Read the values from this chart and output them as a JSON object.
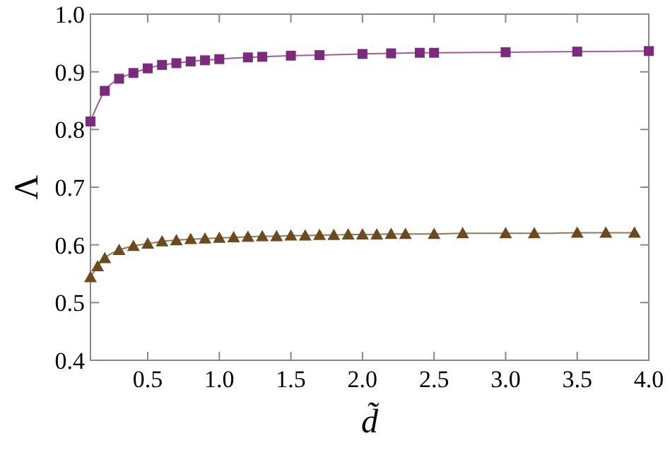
{
  "chart_data": {
    "type": "line",
    "xlabel": "d̃",
    "ylabel": "Λ",
    "xlim": [
      0.1,
      4.0
    ],
    "ylim": [
      0.4,
      1.0
    ],
    "xticks": [
      0.5,
      {
        "value": 1,
        "label": "1.0"
      },
      1.5,
      {
        "value": 2,
        "label": "2.0"
      },
      2.5,
      {
        "value": 3,
        "label": "3.0"
      },
      3.5,
      {
        "value": 4,
        "label": "4.0"
      }
    ],
    "yticks": [
      0.4,
      0.5,
      0.6,
      0.7,
      0.8,
      0.9,
      {
        "value": 1,
        "label": "1.0"
      }
    ],
    "grid": false,
    "line_style": "solid",
    "series": [
      {
        "color": "#7b2a7d",
        "marker": "square",
        "x": [
          0.1,
          0.2,
          0.3,
          0.4,
          0.5,
          0.6,
          0.7,
          0.8,
          0.9,
          1.0,
          1.2,
          1.3,
          1.5,
          1.7,
          2.0,
          2.2,
          2.4,
          2.5,
          3.0,
          3.5,
          4.0
        ],
        "values": [
          0.814,
          0.867,
          0.888,
          0.898,
          0.906,
          0.912,
          0.915,
          0.918,
          0.92,
          0.922,
          0.925,
          0.926,
          0.928,
          0.929,
          0.931,
          0.932,
          0.933,
          0.933,
          0.934,
          0.935,
          0.936
        ]
      },
      {
        "color": "#6b4a1e",
        "marker": "triangle",
        "x": [
          0.1,
          0.15,
          0.2,
          0.3,
          0.4,
          0.5,
          0.6,
          0.7,
          0.8,
          0.9,
          1.0,
          1.1,
          1.2,
          1.3,
          1.4,
          1.5,
          1.6,
          1.7,
          1.8,
          1.9,
          2.0,
          2.1,
          2.2,
          2.3,
          2.5,
          2.7,
          3.0,
          3.2,
          3.5,
          3.7,
          3.9
        ],
        "values": [
          0.544,
          0.563,
          0.577,
          0.591,
          0.598,
          0.602,
          0.606,
          0.608,
          0.61,
          0.611,
          0.612,
          0.613,
          0.614,
          0.615,
          0.615,
          0.616,
          0.616,
          0.617,
          0.617,
          0.618,
          0.618,
          0.618,
          0.619,
          0.619,
          0.619,
          0.62,
          0.62,
          0.62,
          0.621,
          0.621,
          0.621
        ]
      }
    ]
  }
}
